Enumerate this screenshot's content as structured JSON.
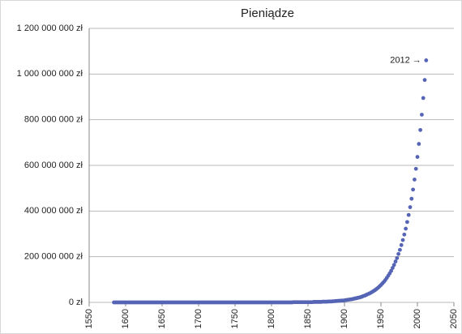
{
  "chart_data": {
    "type": "scatter",
    "title": "Pieniądze",
    "annotation": "2012 →",
    "color": "#5564b4",
    "grid": true,
    "xlim": [
      1550,
      2050
    ],
    "xticks": [
      1550,
      1600,
      1650,
      1700,
      1750,
      1800,
      1850,
      1900,
      1950,
      2000,
      2050
    ],
    "ylim": [
      0,
      1200000000
    ],
    "yticks": [
      {
        "value": 0,
        "label": "0 zł"
      },
      {
        "value": 200000000,
        "label": "200 000 000 zł"
      },
      {
        "value": 400000000,
        "label": "400 000 000 zł"
      },
      {
        "value": 600000000,
        "label": "600 000 000 zł"
      },
      {
        "value": 800000000,
        "label": "800 000 000 zł"
      },
      {
        "value": 1000000000,
        "label": "1 000 000 000 zł"
      },
      {
        "value": 1200000000,
        "label": "1 200 000 000 zł"
      }
    ],
    "x": [
      1584,
      1586,
      1588,
      1590,
      1592,
      1594,
      1596,
      1598,
      1600,
      1602,
      1604,
      1606,
      1608,
      1610,
      1612,
      1614,
      1616,
      1618,
      1620,
      1622,
      1624,
      1626,
      1628,
      1630,
      1632,
      1634,
      1636,
      1638,
      1640,
      1642,
      1644,
      1646,
      1648,
      1650,
      1652,
      1654,
      1656,
      1658,
      1660,
      1662,
      1664,
      1666,
      1668,
      1670,
      1672,
      1674,
      1676,
      1678,
      1680,
      1682,
      1684,
      1686,
      1688,
      1690,
      1692,
      1694,
      1696,
      1698,
      1700,
      1702,
      1704,
      1706,
      1708,
      1710,
      1712,
      1714,
      1716,
      1718,
      1720,
      1722,
      1724,
      1726,
      1728,
      1730,
      1732,
      1734,
      1736,
      1738,
      1740,
      1742,
      1744,
      1746,
      1748,
      1750,
      1752,
      1754,
      1756,
      1758,
      1760,
      1762,
      1764,
      1766,
      1768,
      1770,
      1772,
      1774,
      1776,
      1778,
      1780,
      1782,
      1784,
      1786,
      1788,
      1790,
      1792,
      1794,
      1796,
      1798,
      1800,
      1802,
      1804,
      1806,
      1808,
      1810,
      1812,
      1814,
      1816,
      1818,
      1820,
      1822,
      1824,
      1826,
      1828,
      1830,
      1832,
      1834,
      1836,
      1838,
      1840,
      1842,
      1844,
      1846,
      1848,
      1850,
      1852,
      1854,
      1856,
      1858,
      1860,
      1862,
      1864,
      1866,
      1868,
      1870,
      1872,
      1874,
      1876,
      1878,
      1880,
      1882,
      1884,
      1886,
      1888,
      1890,
      1892,
      1894,
      1896,
      1898,
      1900,
      1902,
      1904,
      1906,
      1908,
      1910,
      1912,
      1914,
      1916,
      1918,
      1920,
      1922,
      1924,
      1926,
      1928,
      1930,
      1932,
      1934,
      1936,
      1938,
      1940,
      1942,
      1944,
      1946,
      1948,
      1950,
      1952,
      1954,
      1956,
      1958,
      1960,
      1962,
      1964,
      1966,
      1968,
      1970,
      1972,
      1974,
      1976,
      1978,
      1980,
      1982,
      1984,
      1986,
      1988,
      1990,
      1992,
      1994,
      1996,
      1998,
      2000,
      2002,
      2004,
      2006,
      2008,
      2010,
      2012
    ],
    "values": [
      0,
      0,
      0,
      0,
      0,
      0,
      0,
      0,
      0,
      0,
      0,
      0,
      0,
      0,
      0,
      0,
      0,
      0,
      0,
      0,
      0,
      0,
      0,
      0,
      0,
      0,
      0,
      0,
      0,
      0,
      0,
      0,
      0,
      0,
      0,
      0,
      0,
      0,
      0,
      0,
      0,
      0,
      0,
      0,
      0,
      0,
      0,
      0,
      0,
      0,
      0,
      0,
      0,
      0,
      0,
      0,
      0,
      0,
      0,
      0,
      0,
      0,
      0,
      0,
      0,
      0,
      0,
      0,
      0,
      0,
      0,
      0,
      0,
      0,
      0,
      0,
      0,
      0,
      0,
      0,
      0,
      0,
      0,
      0,
      0,
      0,
      0,
      0,
      0,
      0,
      0,
      0,
      0,
      0,
      0,
      0,
      0,
      0,
      0,
      0,
      0,
      0,
      0,
      0,
      0,
      0,
      0,
      0,
      0,
      0,
      0,
      0,
      0,
      0,
      0,
      0,
      0,
      0,
      0,
      0,
      0,
      0,
      0,
      1000000.0,
      1000000.0,
      1000000.0,
      1000000.0,
      1000000.0,
      1000000.0,
      1000000.0,
      1000000.0,
      1000000.0,
      1000000.0,
      1000000.0,
      1000000.0,
      1000000.0,
      1000000.0,
      2000000.0,
      2000000.0,
      2000000.0,
      2000000.0,
      2000000.0,
      2000000.0,
      3000000.0,
      3000000.0,
      3000000.0,
      3000000.0,
      4000000.0,
      4000000.0,
      4000000.0,
      5000000.0,
      5000000.0,
      6000000.0,
      6000000.0,
      7000000.0,
      7000000.0,
      8000000.0,
      8000000.0,
      9000000.0,
      10000000.0,
      11000000.0,
      12000000.0,
      13000000.0,
      14000000.0,
      15000000.0,
      17000000.0,
      18000000.0,
      20000000.0,
      21000000.0,
      23000000.0,
      25000000.0,
      28000000.0,
      30000000.0,
      33000000.0,
      36000000.0,
      39000000.0,
      42000000.0,
      46000000.0,
      50000000.0,
      54000000.0,
      59000000.0,
      64000000.0,
      70000000.0,
      76000000.0,
      83000000.0,
      90000000.0,
      98000000.0,
      107000000.0,
      117000000.0,
      127000000.0,
      138000000.0,
      151000000.0,
      164000000.0,
      179000000.0,
      194000000.0,
      212000000.0,
      230000000.0,
      251000000.0,
      273000000.0,
      297000000.0,
      323000000.0,
      352000000.0,
      383000000.0,
      417000000.0,
      454000000.0,
      494000000.0,
      538000000.0,
      585000000.0,
      637000000.0,
      694000000.0,
      755000000.0,
      822000000.0,
      895000000.0,
      974000000.0,
      1060000000.0
    ]
  }
}
